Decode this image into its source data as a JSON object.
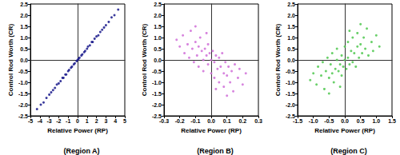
{
  "chart_data": [
    {
      "type": "scatter",
      "title": "(Region A)",
      "x_label": "Relative Power (RP)",
      "y_label": "Control Rod Worth (CR)",
      "color": "#1a1a8c",
      "grid": false,
      "xlim": [
        -5,
        5
      ],
      "ylim": [
        -2.5,
        2.5
      ],
      "xticks": [
        -5,
        -4,
        -3,
        -2,
        -1,
        0,
        1,
        2,
        3,
        4,
        5
      ],
      "yticks": [
        -2.5,
        {
          "value": -2,
          "label": "-2.0"
        },
        -1.5,
        {
          "value": -1,
          "label": "-1.0"
        },
        -0.5,
        {
          "value": 0,
          "label": "0.0"
        },
        0.5,
        {
          "value": 1,
          "label": "1.0"
        },
        1.5,
        {
          "value": 2,
          "label": "2.0"
        },
        2.5
      ],
      "x": [
        -4.3,
        -3.9,
        -3.6,
        -3.3,
        -3.0,
        -2.8,
        -2.6,
        -2.4,
        -2.2,
        -2.0,
        -1.8,
        -1.6,
        -1.5,
        -1.3,
        -1.2,
        -1.0,
        -0.9,
        -0.7,
        -0.6,
        -0.4,
        -0.3,
        -0.1,
        0,
        0.1,
        0.2,
        0.4,
        0.5,
        0.7,
        0.8,
        1.0,
        1.1,
        1.3,
        1.5,
        1.6,
        1.8,
        2.0,
        2.2,
        2.4,
        2.6,
        2.8,
        3.0,
        3.3,
        3.6,
        3.9,
        4.3
      ],
      "values": [
        -2.2,
        -2.0,
        -1.9,
        -1.7,
        -1.55,
        -1.45,
        -1.35,
        -1.25,
        -1.1,
        -1.05,
        -0.95,
        -0.8,
        -0.8,
        -0.65,
        -0.65,
        -0.5,
        -0.45,
        -0.35,
        -0.3,
        -0.2,
        -0.15,
        -0.05,
        0,
        0.05,
        0.1,
        0.2,
        0.25,
        0.35,
        0.4,
        0.5,
        0.6,
        0.65,
        0.8,
        0.8,
        0.95,
        1.05,
        1.1,
        1.25,
        1.35,
        1.45,
        1.55,
        1.7,
        1.9,
        2.0,
        2.25
      ]
    },
    {
      "type": "scatter",
      "title": "(Region B)",
      "x_label": "Relative Power (RP)",
      "y_label": "Control Rod Worth (CR)",
      "color": "#d070d8",
      "grid": false,
      "xlim": [
        -0.3,
        0.3
      ],
      "ylim": [
        -2.5,
        2.5
      ],
      "xticks": [
        -0.3,
        -0.2,
        -0.1,
        {
          "value": 0,
          "label": "0.0"
        },
        0.1,
        0.2,
        0.3
      ],
      "yticks": [
        -2.5,
        {
          "value": -2,
          "label": "-2.0"
        },
        -1.5,
        {
          "value": -1,
          "label": "-1.0"
        },
        -0.5,
        {
          "value": 0,
          "label": "0.0"
        },
        0.5,
        {
          "value": 1,
          "label": "1.0"
        },
        1.5,
        {
          "value": 2,
          "label": "2.0"
        },
        2.5
      ],
      "x": [
        -0.22,
        -0.2,
        -0.18,
        -0.17,
        -0.15,
        -0.14,
        -0.13,
        -0.12,
        -0.11,
        -0.1,
        -0.09,
        -0.08,
        -0.08,
        -0.07,
        -0.06,
        -0.05,
        -0.05,
        -0.04,
        -0.03,
        -0.02,
        -0.02,
        -0.01,
        0,
        0,
        0.01,
        0.02,
        0.02,
        0.03,
        0.04,
        0.05,
        0.05,
        0.06,
        0.07,
        0.08,
        0.08,
        0.09,
        0.1,
        0.11,
        0.12,
        0.13,
        0.14,
        0.15,
        0.17,
        0.18,
        0.2,
        0.22,
        -0.1,
        0.1,
        -0.03,
        0.03
      ],
      "values": [
        0.9,
        0.6,
        1.1,
        0.3,
        0.7,
        0.1,
        1.3,
        0.5,
        -0.1,
        0.8,
        0.2,
        0.6,
        -0.3,
        1.0,
        0.4,
        0.0,
        -0.5,
        0.5,
        0.2,
        -0.2,
        0.7,
        0.3,
        0.0,
        -0.6,
        0.4,
        -0.1,
        -0.8,
        0.2,
        -0.4,
        0.1,
        -1.0,
        -0.3,
        0.3,
        -0.6,
        -1.2,
        -0.1,
        -0.7,
        -0.3,
        -1.0,
        -0.5,
        -1.4,
        -0.2,
        -0.8,
        -0.4,
        -1.1,
        -0.6,
        1.5,
        -1.6,
        1.2,
        -1.3
      ]
    },
    {
      "type": "scatter",
      "title": "(Region C)",
      "x_label": "Relative Power (RP)",
      "y_label": "Control Rod Worth (CR)",
      "color": "#50c850",
      "grid": false,
      "xlim": [
        -1.5,
        1.5
      ],
      "ylim": [
        -2.5,
        2.5
      ],
      "xticks": [
        -1.5,
        {
          "value": -1,
          "label": "-1.0"
        },
        -0.5,
        {
          "value": 0,
          "label": "0.0"
        },
        0.5,
        {
          "value": 1,
          "label": "1.0"
        },
        1.5
      ],
      "yticks": [
        -2.5,
        {
          "value": -2,
          "label": "-2.0"
        },
        -1.5,
        {
          "value": -1,
          "label": "-1.0"
        },
        -0.5,
        {
          "value": 0,
          "label": "0.0"
        },
        0.5,
        {
          "value": 1,
          "label": "1.0"
        },
        1.5,
        {
          "value": 2,
          "label": "2.0"
        },
        2.5
      ],
      "x": [
        -1.1,
        -1.0,
        -0.9,
        -0.85,
        -0.75,
        -0.7,
        -0.65,
        -0.6,
        -0.55,
        -0.5,
        -0.45,
        -0.4,
        -0.4,
        -0.35,
        -0.3,
        -0.25,
        -0.25,
        -0.2,
        -0.15,
        -0.1,
        -0.1,
        -0.05,
        0,
        0,
        0.05,
        0.1,
        0.1,
        0.15,
        0.2,
        0.25,
        0.25,
        0.3,
        0.35,
        0.4,
        0.4,
        0.45,
        0.5,
        0.55,
        0.6,
        0.65,
        0.7,
        0.75,
        0.85,
        0.9,
        1.0,
        1.1,
        -0.5,
        0.5,
        -0.15,
        0.15
      ],
      "values": [
        -0.9,
        -0.6,
        -1.1,
        -0.3,
        -0.7,
        -0.1,
        -1.3,
        -0.5,
        0.1,
        -0.8,
        -0.2,
        -0.6,
        0.3,
        -1.0,
        -0.4,
        0.0,
        0.5,
        -0.5,
        -0.2,
        0.2,
        -0.7,
        -0.3,
        0.0,
        0.6,
        -0.4,
        0.1,
        0.8,
        -0.2,
        0.4,
        -0.1,
        1.0,
        0.3,
        -0.3,
        0.6,
        1.2,
        0.1,
        0.7,
        0.3,
        1.0,
        0.5,
        1.4,
        0.2,
        0.8,
        0.4,
        1.1,
        0.6,
        -1.5,
        1.6,
        -1.2,
        1.3
      ]
    }
  ]
}
